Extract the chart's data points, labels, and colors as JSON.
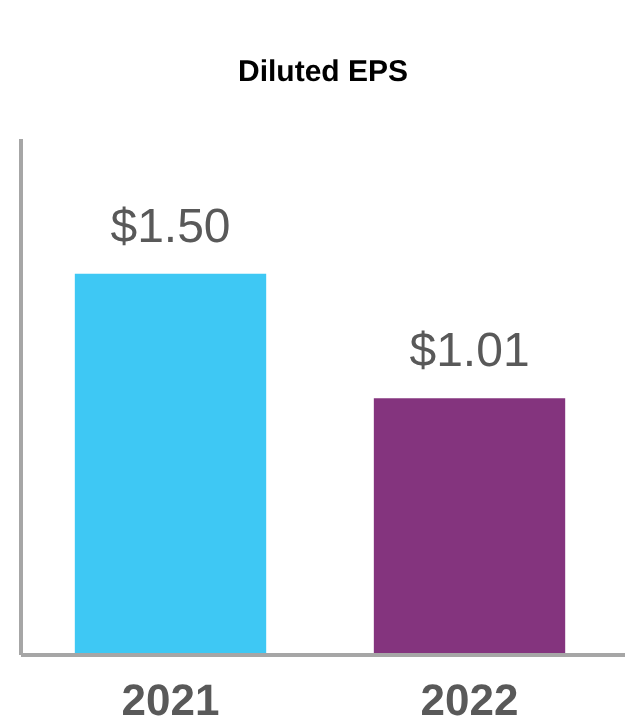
{
  "chart_data": {
    "type": "bar",
    "title": "Diluted EPS",
    "categories": [
      "2021",
      "2022"
    ],
    "values": [
      1.5,
      1.01
    ],
    "colors": [
      "#3ec8f4",
      "#84347e"
    ],
    "value_labels": [
      "$1.50",
      "$1.01"
    ],
    "ylim": [
      0,
      2.03
    ],
    "tick_labels": "x",
    "grid": false
  }
}
